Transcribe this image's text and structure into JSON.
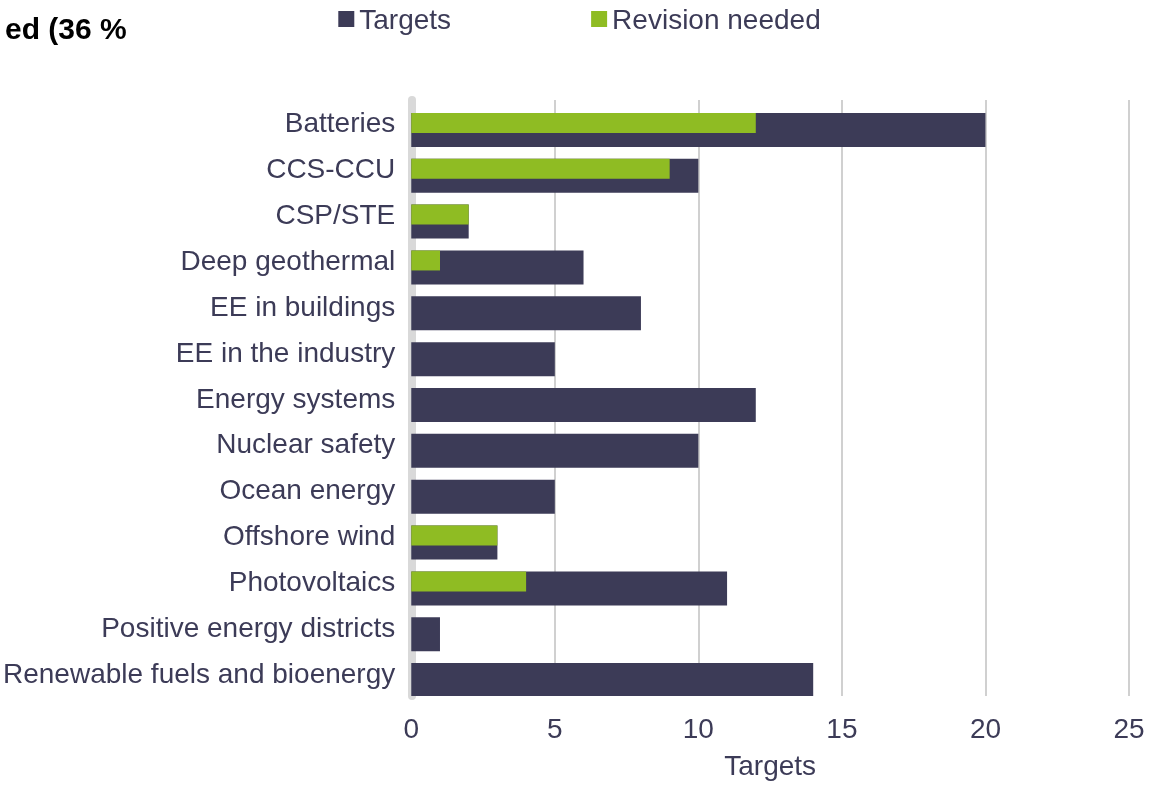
{
  "chart_data": {
    "type": "bar",
    "orientation": "horizontal",
    "title": "ed (36 %",
    "xlabel": "Targets",
    "categories": [
      "Batteries",
      "CCS-CCU",
      "CSP/STE",
      "Deep geothermal",
      "EE in buildings",
      "EE in the industry",
      "Energy systems",
      "Nuclear safety",
      "Ocean energy",
      "Offshore wind",
      "Photovoltaics",
      "Positive energy districts",
      "Renewable fuels and bioenergy"
    ],
    "series": [
      {
        "name": "Targets",
        "color": "#3c3b57",
        "values": [
          20,
          10,
          2,
          6,
          8,
          5,
          12,
          10,
          5,
          3,
          11,
          1,
          14
        ]
      },
      {
        "name": "Revision needed",
        "color": "#8fbc23",
        "values": [
          12,
          9,
          2,
          1,
          null,
          null,
          null,
          null,
          null,
          3,
          4,
          null,
          null
        ]
      }
    ],
    "xlim": [
      0,
      25
    ],
    "xticks": [
      0,
      5,
      10,
      15,
      20,
      25
    ],
    "grid": "x",
    "legend": "top"
  }
}
